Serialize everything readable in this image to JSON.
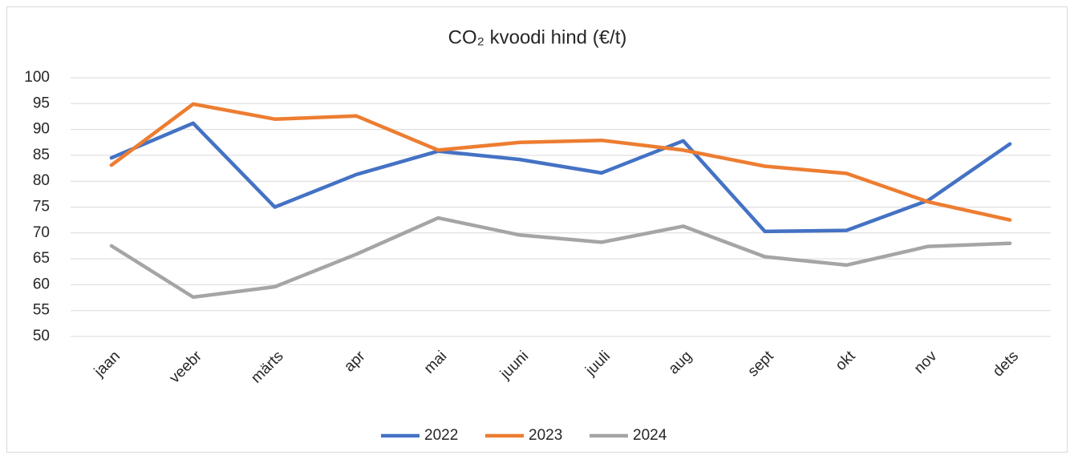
{
  "chart_data": {
    "type": "line",
    "title": "CO₂ kvoodi hind (€/t)",
    "categories": [
      "jaan",
      "veebr",
      "märts",
      "apr",
      "mai",
      "juuni",
      "juuli",
      "aug",
      "sept",
      "okt",
      "nov",
      "dets"
    ],
    "series": [
      {
        "name": "2022",
        "color": "#4472c4",
        "values": [
          84.5,
          91.2,
          75.0,
          81.3,
          85.8,
          84.2,
          81.6,
          87.8,
          70.3,
          70.5,
          76.3,
          87.2
        ]
      },
      {
        "name": "2023",
        "color": "#ed7d31",
        "values": [
          83.1,
          94.9,
          92.0,
          92.6,
          86.0,
          87.5,
          87.9,
          86.0,
          82.9,
          81.5,
          76.0,
          72.5
        ]
      },
      {
        "name": "2024",
        "color": "#a5a5a5",
        "values": [
          67.5,
          57.6,
          59.6,
          65.9,
          72.9,
          69.6,
          68.2,
          71.3,
          65.4,
          63.8,
          67.4,
          68.0
        ]
      }
    ],
    "ylim": [
      50,
      100
    ],
    "yticks": [
      50,
      55,
      60,
      65,
      70,
      75,
      80,
      85,
      90,
      95,
      100
    ],
    "grid": true,
    "legend": "bottom"
  }
}
